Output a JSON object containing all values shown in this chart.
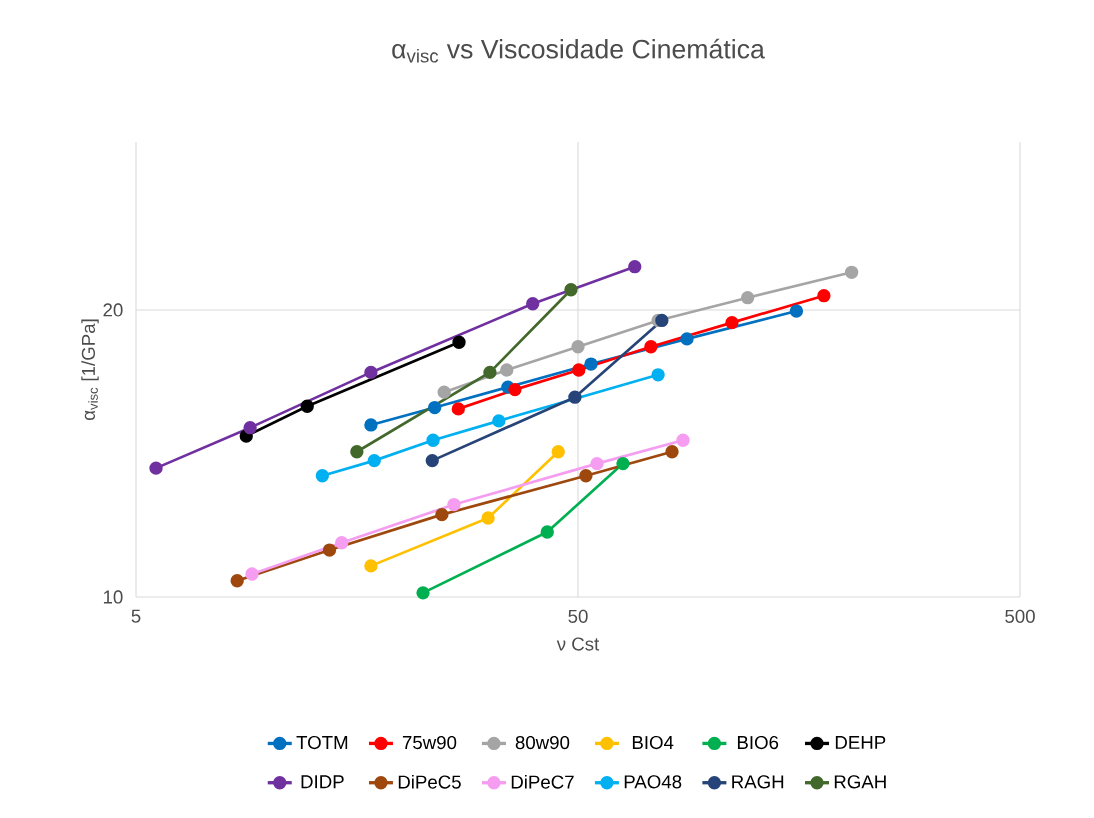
{
  "chart_data": {
    "type": "line",
    "title": "α$_{visc}$ vs Viscosidade Cinemática",
    "xlabel": "ν Cst",
    "ylabel": "α$_{visc}$ [1/GPa]",
    "log": "xy",
    "xlim": [
      5,
      500
    ],
    "xticks": [
      5,
      50,
      500
    ],
    "ylim": [
      10,
      30
    ],
    "yticks": [
      10,
      20
    ],
    "grid": true,
    "legend": "bottom",
    "marker": "circle",
    "line_style": "solid",
    "series": [
      {
        "name": "TOTM",
        "color": "#0070c0",
        "x": [
          17.0,
          23.7,
          34.7,
          53.5,
          88.2,
          156
        ],
        "values": [
          15.15,
          15.8,
          16.6,
          17.55,
          18.65,
          19.95
        ]
      },
      {
        "name": "75w90",
        "color": "#ff0000",
        "x": [
          26.8,
          36.0,
          50.2,
          73.1,
          111.5,
          180
        ],
        "values": [
          15.75,
          16.5,
          17.3,
          18.3,
          19.4,
          20.7
        ]
      },
      {
        "name": "80w90",
        "color": "#a5a5a5",
        "x": [
          24.9,
          34.5,
          50,
          75.9,
          121,
          208
        ],
        "values": [
          16.4,
          17.3,
          18.3,
          19.5,
          20.6,
          21.9
        ]
      },
      {
        "name": "BIO4",
        "color": "#ffc000",
        "x": [
          17.0,
          31.3,
          45.1
        ],
        "values": [
          10.78,
          12.1,
          14.2
        ]
      },
      {
        "name": "BIO6",
        "color": "#00b050",
        "x": [
          22.3,
          42.6,
          63.2
        ],
        "values": [
          10.1,
          11.7,
          13.8
        ]
      },
      {
        "name": "DEHP",
        "color": "#000000",
        "x": [
          8.88,
          12.2,
          26.9
        ],
        "values": [
          14.75,
          15.85,
          18.5
        ]
      },
      {
        "name": "DIDP",
        "color": "#7030a0",
        "x": [
          5.55,
          9.06,
          17.0,
          39.5,
          67.2
        ],
        "values": [
          13.65,
          15.05,
          17.2,
          20.3,
          22.2
        ]
      },
      {
        "name": "DiPeC5",
        "color": "#9e480e",
        "x": [
          8.47,
          13.7,
          24.6,
          52.1,
          81.6
        ],
        "values": [
          10.4,
          11.2,
          12.2,
          13.4,
          14.2
        ]
      },
      {
        "name": "DiPeC7",
        "color": "#f59df0",
        "x": [
          9.15,
          14.6,
          26.2,
          55.2,
          86.4
        ],
        "values": [
          10.57,
          11.4,
          12.5,
          13.8,
          14.6
        ]
      },
      {
        "name": "PAO48",
        "color": "#00b0f0",
        "x": [
          13.2,
          17.3,
          23.5,
          33.1,
          75.9
        ],
        "values": [
          13.4,
          13.9,
          14.6,
          15.3,
          17.1
        ]
      },
      {
        "name": "RAGH",
        "color": "#264478",
        "x": [
          23.4,
          49.2,
          77.4
        ],
        "values": [
          13.9,
          16.2,
          19.5
        ]
      },
      {
        "name": "RGAH",
        "color": "#43682b",
        "x": [
          15.8,
          31.6,
          48.2
        ],
        "values": [
          14.2,
          17.2,
          21.0
        ]
      }
    ]
  }
}
